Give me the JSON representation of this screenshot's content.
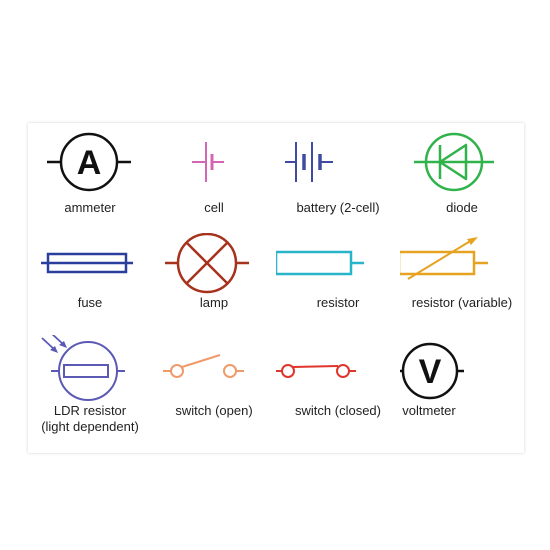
{
  "colors": {
    "ammeter": "#111111",
    "cell": "#d466b3",
    "battery": "#3f4aa0",
    "diode": "#2fb34a",
    "fuse": "#2a3f9b",
    "lamp": "#a6311c",
    "resistor": "#29b5c9",
    "resistor_variable": "#e6a321",
    "ldr": "#5a5ab4",
    "switch_open": "#ef9a6a",
    "switch_closed": "#e0352b",
    "voltmeter": "#111111"
  },
  "symbols": {
    "ammeter": {
      "letter": "A",
      "label": "ammeter"
    },
    "cell": {
      "label": "cell"
    },
    "battery": {
      "label": "battery (2-cell)"
    },
    "diode": {
      "label": "diode"
    },
    "fuse": {
      "label": "fuse"
    },
    "lamp": {
      "label": "lamp"
    },
    "resistor": {
      "label": "resistor"
    },
    "resistor_variable": {
      "label": "resistor (variable)"
    },
    "ldr": {
      "label_line1": "LDR resistor",
      "label_line2": "(light dependent)"
    },
    "switch_open": {
      "label": "switch (open)"
    },
    "switch_closed": {
      "label": "switch (closed)"
    },
    "voltmeter": {
      "letter": "V",
      "label": "voltmeter"
    }
  }
}
